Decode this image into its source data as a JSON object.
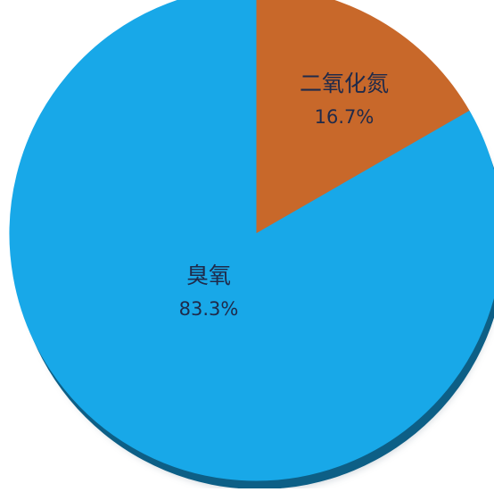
{
  "chart_data": {
    "type": "pie",
    "title": "",
    "slices": [
      {
        "label": "二氧化氮",
        "value": 16.7,
        "value_label": "16.7%",
        "color": "#C8682A"
      },
      {
        "label": "臭氧",
        "value": 83.3,
        "value_label": "83.3%",
        "color": "#18A8E8"
      }
    ],
    "legend": "none",
    "style": "3d-shadow"
  }
}
